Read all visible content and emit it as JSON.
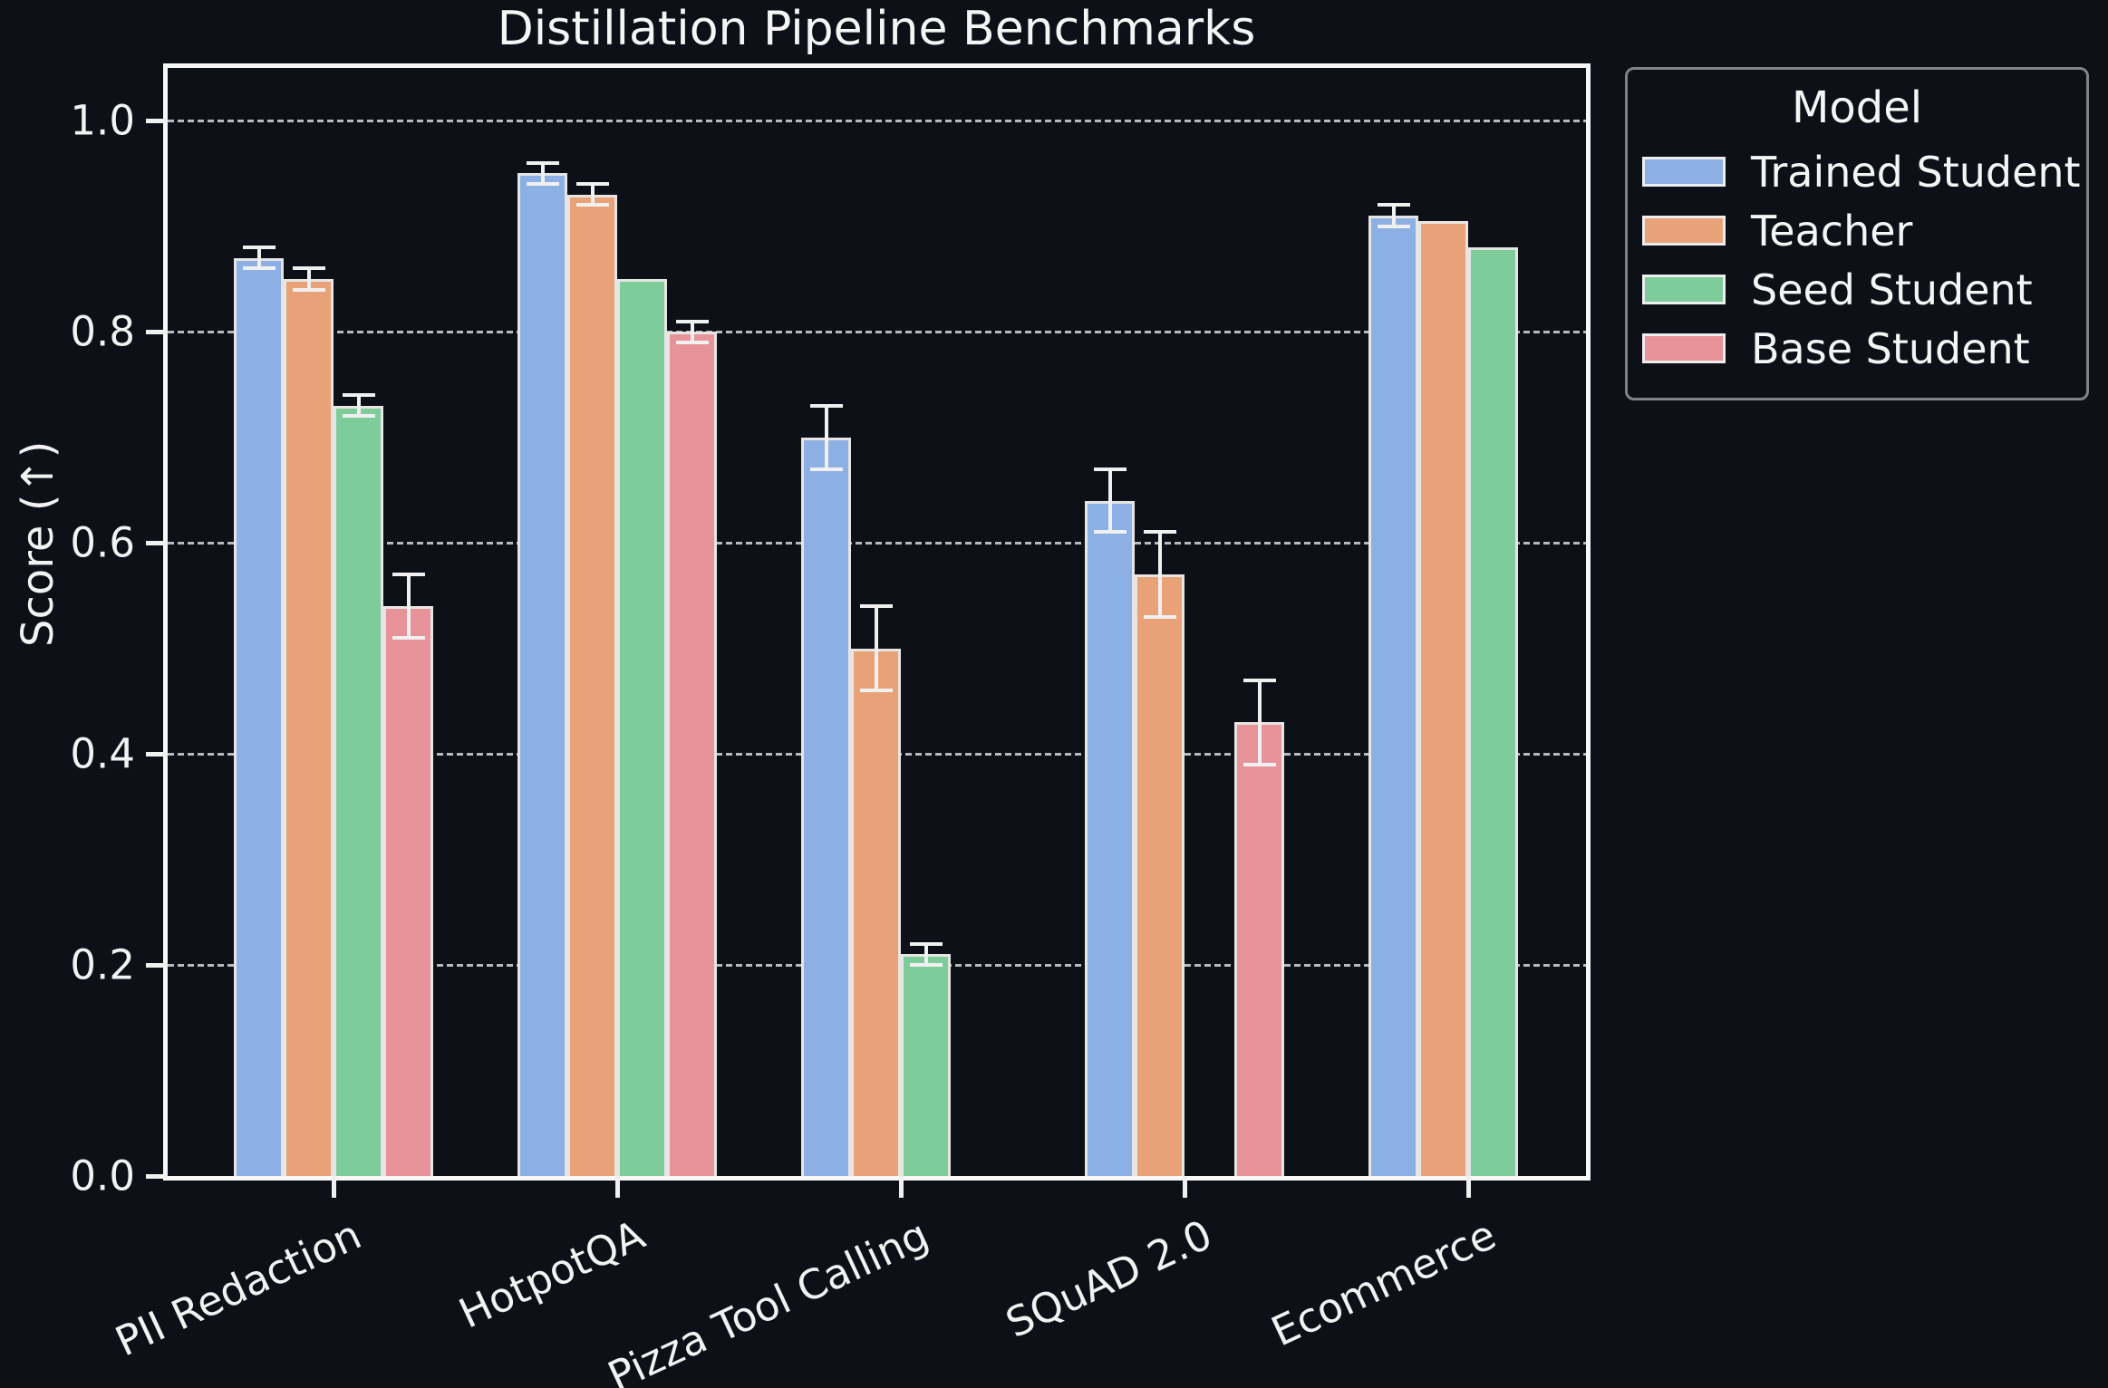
{
  "title": "Distillation Pipeline Benchmarks",
  "y_axis": {
    "label": "Score (↑)",
    "tick_labels": [
      "0.0",
      "0.2",
      "0.4",
      "0.6",
      "0.8",
      "1.0"
    ]
  },
  "x_axis": {
    "tick_labels": [
      "PII Redaction",
      "HotpotQA",
      "Pizza Tool Calling",
      "SQuAD 2.0",
      "Ecommerce"
    ]
  },
  "legend": {
    "title": "Model",
    "entries": [
      {
        "label": "Trained Student",
        "color": "#8cb0e4"
      },
      {
        "label": "Teacher",
        "color": "#e9a177"
      },
      {
        "label": "Seed Student",
        "color": "#7dcc9a"
      },
      {
        "label": "Base Student",
        "color": "#e8929a"
      }
    ]
  },
  "chart_data": {
    "type": "bar",
    "title": "Distillation Pipeline Benchmarks",
    "xlabel": "",
    "ylabel": "Score (↑)",
    "ylim": [
      0,
      1.05
    ],
    "yticks": [
      0.0,
      0.2,
      0.4,
      0.6,
      0.8,
      1.0
    ],
    "grid": "horizontal dashed gridlines at each y tick",
    "legend_title": "Model",
    "legend_position": "outside upper right",
    "error_bars": true,
    "categories": [
      "PII Redaction",
      "HotpotQA",
      "Pizza Tool Calling",
      "SQuAD 2.0",
      "Ecommerce"
    ],
    "series": [
      {
        "name": "Trained Student",
        "color": "#8cb0e4",
        "values": [
          0.87,
          0.95,
          0.7,
          0.64,
          0.91
        ],
        "errors": [
          0.01,
          0.01,
          0.03,
          0.03,
          0.01
        ]
      },
      {
        "name": "Teacher",
        "color": "#e9a177",
        "values": [
          0.85,
          0.93,
          0.5,
          0.57,
          0.905
        ],
        "errors": [
          0.01,
          0.01,
          0.04,
          0.04,
          null
        ]
      },
      {
        "name": "Seed Student",
        "color": "#7dcc9a",
        "values": [
          0.73,
          0.85,
          0.21,
          null,
          0.88
        ],
        "errors": [
          0.01,
          null,
          0.01,
          null,
          null
        ]
      },
      {
        "name": "Base Student",
        "color": "#e8929a",
        "values": [
          0.54,
          0.8,
          null,
          0.43,
          null
        ],
        "errors": [
          0.03,
          0.01,
          null,
          0.04,
          null
        ]
      }
    ]
  },
  "colors": {
    "background": "#0d1017",
    "text": "#f2f2f2",
    "spine": "#f7f7f7",
    "grid": "#c9ccd1",
    "bar_edge": "#e7e5e4",
    "error_bar": "#f0f0f0",
    "legend_border": "#7f838a"
  }
}
